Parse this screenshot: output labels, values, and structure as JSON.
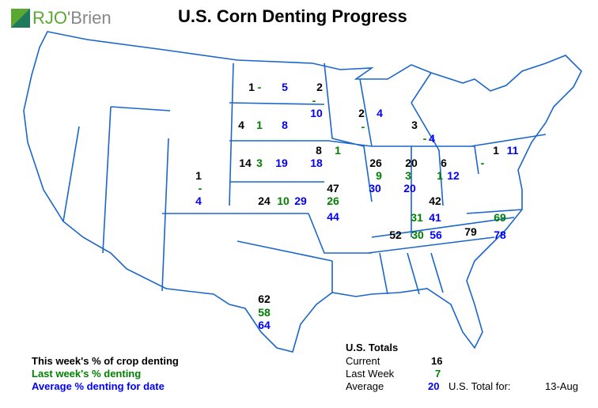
{
  "header": {
    "title": "U.S. Corn Denting Progress",
    "logo_text": "RJO'Brien"
  },
  "colors": {
    "current": "#000000",
    "last_week": "#008000",
    "average": "#0000ff",
    "state_lines": "#1a66cc"
  },
  "states": [
    {
      "id": "ND",
      "current": "1",
      "last_week": "-",
      "average": "5"
    },
    {
      "id": "MN",
      "current": "2",
      "last_week": "-",
      "average": "10"
    },
    {
      "id": "SD",
      "current": "4",
      "last_week": "1",
      "average": "8"
    },
    {
      "id": "WI",
      "current": "2",
      "last_week": "-",
      "average": "4"
    },
    {
      "id": "MI",
      "current": "3",
      "last_week": "-",
      "average": "4"
    },
    {
      "id": "IA",
      "current": "8",
      "last_week": "1",
      "average": "18"
    },
    {
      "id": "NE",
      "current": "14",
      "last_week": "3",
      "average": "19"
    },
    {
      "id": "CO",
      "current": "1",
      "last_week": "-",
      "average": "4"
    },
    {
      "id": "IL",
      "current": "26",
      "last_week": "9",
      "average": "30"
    },
    {
      "id": "IN",
      "current": "20",
      "last_week": "3",
      "average": "20"
    },
    {
      "id": "OH",
      "current": "6",
      "last_week": "1",
      "average": "12"
    },
    {
      "id": "PA",
      "current": "1",
      "last_week": "-",
      "average": "11"
    },
    {
      "id": "MO",
      "current": "47",
      "last_week": "26",
      "average": "44"
    },
    {
      "id": "KS",
      "current": "24",
      "last_week": "10",
      "average": "29"
    },
    {
      "id": "KY",
      "current": "42",
      "last_week": "31",
      "average": "41"
    },
    {
      "id": "TN",
      "current": "52",
      "last_week": "30",
      "average": "56"
    },
    {
      "id": "NC",
      "current": "79",
      "last_week": "69",
      "average": "78"
    },
    {
      "id": "TX",
      "current": "62",
      "last_week": "58",
      "average": "64"
    }
  ],
  "legend": {
    "current": "This week's % of crop denting",
    "last_week": "Last week's % denting",
    "average": "Average % denting for date"
  },
  "totals": {
    "title": "U.S. Totals",
    "current_label": "Current",
    "current": "16",
    "last_week_label": "Last Week",
    "last_week": "7",
    "average_label": "Average",
    "average": "20",
    "date_label": "U.S. Total for:",
    "date": "13-Aug"
  }
}
